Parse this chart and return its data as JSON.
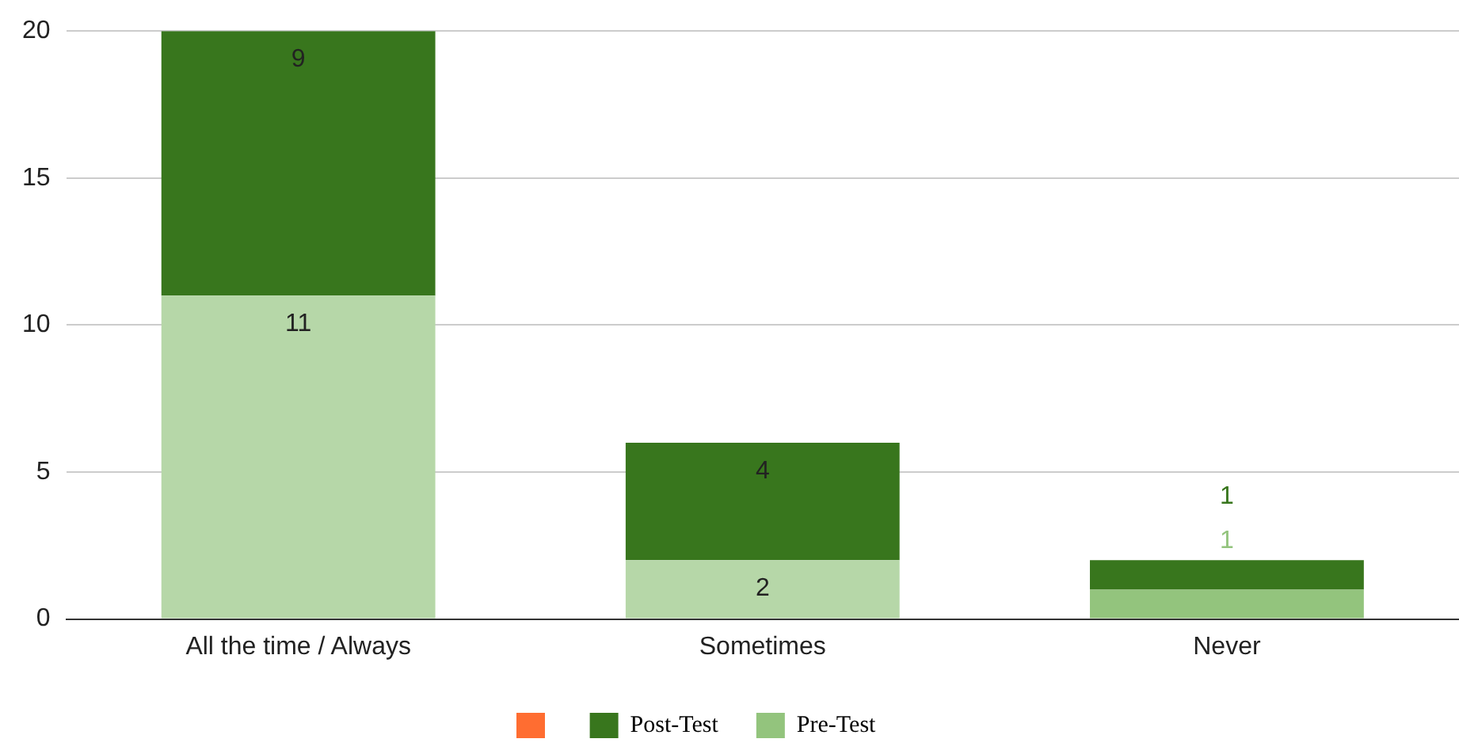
{
  "chart_data": {
    "type": "bar",
    "stacked": true,
    "categories": [
      "All the time / Always",
      "Sometimes",
      "Never"
    ],
    "series": [
      {
        "name": "Pre-Test",
        "color": "#93c47d",
        "colors": [
          "#b6d7a8",
          "#b6d7a8",
          "#93c47d"
        ],
        "values": [
          11,
          2,
          1
        ]
      },
      {
        "name": "Post-Test",
        "color": "#38761d",
        "values": [
          9,
          4,
          1
        ]
      }
    ],
    "ylim": [
      0,
      20
    ],
    "yticks": [
      0,
      5,
      10,
      15,
      20
    ],
    "grid": "y",
    "legend": "bottom",
    "data_labels": true
  }
}
